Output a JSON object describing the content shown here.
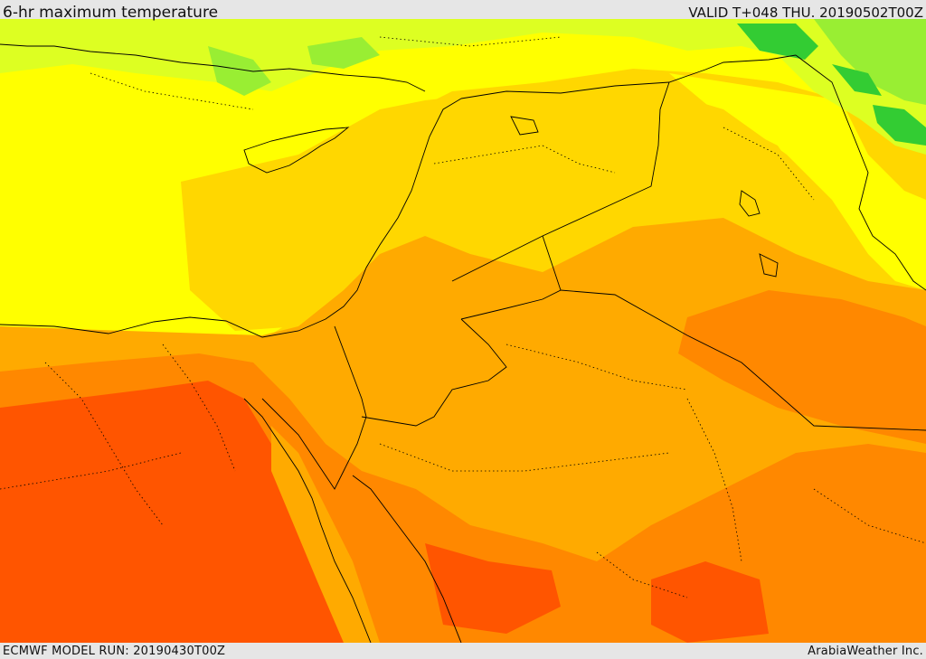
{
  "header": {
    "title": "6-hr maximum temperature",
    "valid": "VALID T+048 THU. 20190502T00Z"
  },
  "footer": {
    "model_run": "ECMWF MODEL RUN: 20190430T00Z",
    "credit": "ArabiaWeather Inc."
  },
  "map": {
    "variable": "6-hr maximum temperature",
    "palette": {
      "green": "#33cc33",
      "light_green": "#99ee33",
      "yellow_green": "#ddff22",
      "yellow": "#ffff00",
      "gold": "#ffd700",
      "orange": "#ffaa00",
      "dark_orange": "#ff8800",
      "red_orange": "#ff5500",
      "red": "#ff3300",
      "border_line": "#000000",
      "background": "#e6e6e6"
    }
  }
}
